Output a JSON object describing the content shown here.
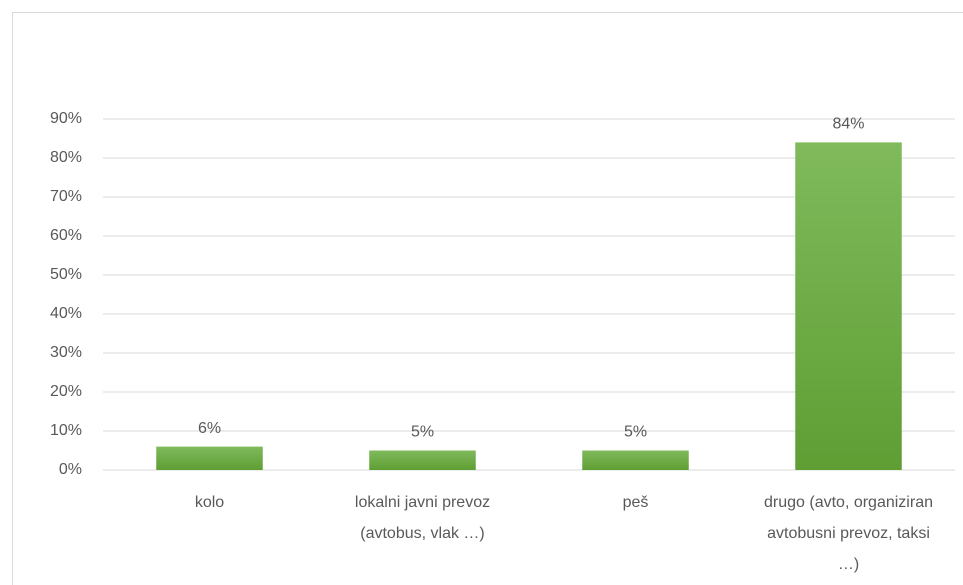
{
  "chart_data": {
    "type": "bar",
    "categories": [
      "kolo",
      "lokalni javni prevoz (avtobus, vlak …)",
      "peš",
      "drugo (avto, organiziran avtobusni prevoz, taksi …)"
    ],
    "values": [
      6,
      5,
      5,
      84
    ],
    "value_labels": [
      "6%",
      "5%",
      "5%",
      "84%"
    ],
    "color": "#6aab3f",
    "ylim": [
      0,
      90
    ],
    "yticks": [
      {
        "value": 0,
        "label": "0%"
      },
      {
        "value": 10,
        "label": "10%"
      },
      {
        "value": 20,
        "label": "20%"
      },
      {
        "value": 30,
        "label": "30%"
      },
      {
        "value": 40,
        "label": "40%"
      },
      {
        "value": 50,
        "label": "50%"
      },
      {
        "value": 60,
        "label": "60%"
      },
      {
        "value": 70,
        "label": "70%"
      },
      {
        "value": 80,
        "label": "80%"
      },
      {
        "value": 90,
        "label": "90%"
      }
    ],
    "grid": true
  }
}
